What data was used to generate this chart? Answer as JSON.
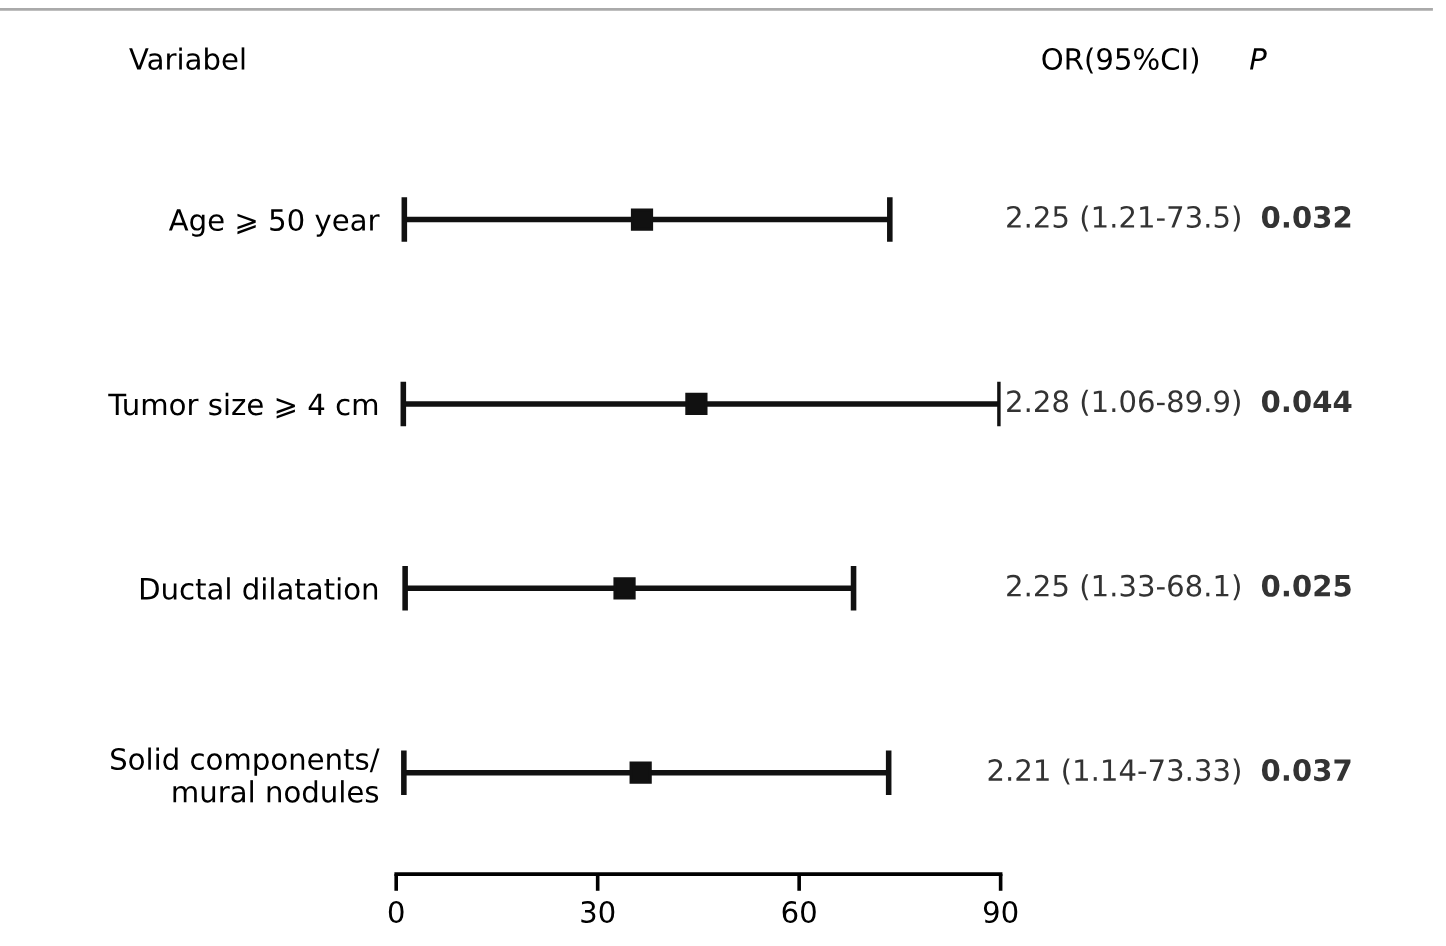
{
  "chart_data": {
    "type": "scatter",
    "orientation": "horizontal",
    "categories": [
      "Age ⩾ 50 year",
      "Tumor size ⩾ 4 cm",
      "Ductal dilatation",
      "Solid components/\nmural nodules"
    ],
    "values": [
      36.6,
      44.7,
      34.0,
      36.4
    ],
    "errors": [
      [
        1.21,
        73.5
      ],
      [
        1.06,
        89.9
      ],
      [
        1.33,
        68.1
      ],
      [
        1.14,
        73.33
      ]
    ],
    "color": "#111111",
    "marker": "square",
    "xlim": [
      0,
      90
    ],
    "xticks": [
      0,
      30,
      60,
      90
    ],
    "grid": false,
    "annotations": [
      "Variabel",
      "OR(95%CI)",
      "P",
      "2.25 (1.21-73.5)",
      "0.032",
      "2.28 (1.06-89.9)",
      "0.044",
      "2.25 (1.33-68.1)",
      "0.025",
      "2.21 (1.14-73.33)",
      "0.037"
    ]
  }
}
